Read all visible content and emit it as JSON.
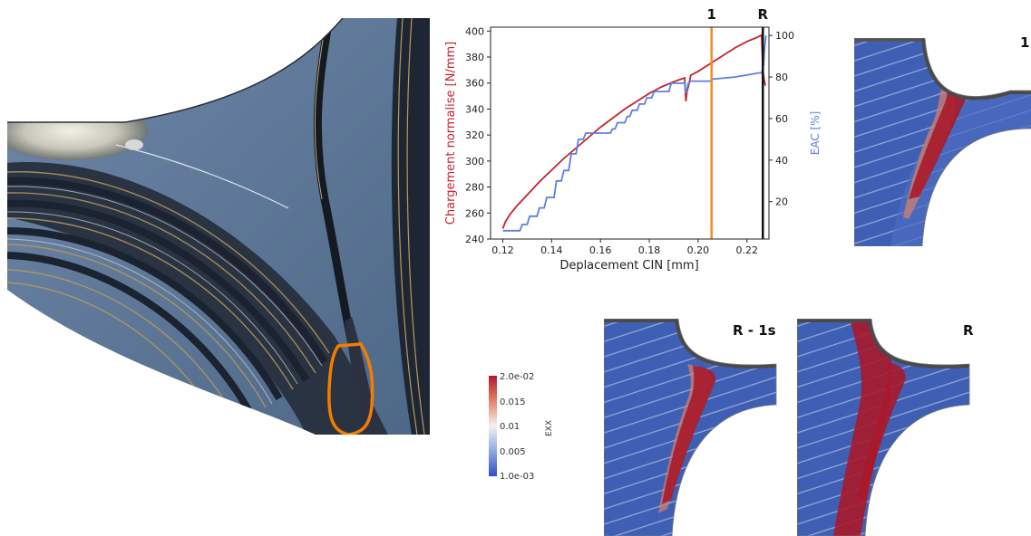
{
  "micrograph": {
    "highlight_color": "#f47c00"
  },
  "chart_data": {
    "type": "line",
    "xlabel": "Deplacement CIN [mm]",
    "ylabel_left": "Chargement normalise [N/mm]",
    "ylabel_right": "EAC [%]",
    "xlim": [
      0.115,
      0.229
    ],
    "ylim_left": [
      240,
      403
    ],
    "ylim_right": [
      2,
      104
    ],
    "x_ticks": [
      0.12,
      0.14,
      0.16,
      0.18,
      0.2,
      0.22
    ],
    "x_tick_labels": [
      "0.12",
      "0.14",
      "0.16",
      "0.18",
      "0.20",
      "0.22"
    ],
    "y_left_ticks": [
      240,
      260,
      280,
      300,
      320,
      340,
      360,
      380,
      400
    ],
    "y_left_tick_labels": [
      "240",
      "260",
      "280",
      "300",
      "320",
      "340",
      "360",
      "380",
      "400"
    ],
    "y_right_ticks": [
      20,
      40,
      60,
      80,
      100
    ],
    "y_right_tick_labels": [
      "20",
      "40",
      "60",
      "80",
      "100"
    ],
    "grid": false,
    "series": [
      {
        "axis": "left",
        "color": "#c0262f",
        "points": [
          [
            0.12,
            248
          ],
          [
            0.121,
            253
          ],
          [
            0.123,
            259
          ],
          [
            0.126,
            266
          ],
          [
            0.13,
            274
          ],
          [
            0.135,
            284
          ],
          [
            0.14,
            293
          ],
          [
            0.145,
            302
          ],
          [
            0.15,
            310
          ],
          [
            0.155,
            318
          ],
          [
            0.16,
            326
          ],
          [
            0.165,
            333
          ],
          [
            0.17,
            340
          ],
          [
            0.175,
            346
          ],
          [
            0.18,
            352
          ],
          [
            0.185,
            357
          ],
          [
            0.19,
            361
          ],
          [
            0.193,
            363
          ],
          [
            0.1945,
            364
          ],
          [
            0.1948,
            352
          ],
          [
            0.195,
            346
          ],
          [
            0.1955,
            354
          ],
          [
            0.196,
            357
          ],
          [
            0.197,
            366
          ],
          [
            0.2,
            369
          ],
          [
            0.205,
            375
          ],
          [
            0.21,
            381
          ],
          [
            0.215,
            387
          ],
          [
            0.22,
            392
          ],
          [
            0.224,
            395
          ],
          [
            0.226,
            397
          ],
          [
            0.2265,
            370
          ],
          [
            0.227,
            363
          ],
          [
            0.2275,
            358
          ]
        ]
      },
      {
        "axis": "right",
        "color": "#5b7fe0",
        "points": [
          [
            0.12,
            6
          ],
          [
            0.127,
            6
          ],
          [
            0.128,
            9
          ],
          [
            0.13,
            9
          ],
          [
            0.131,
            13
          ],
          [
            0.134,
            13
          ],
          [
            0.135,
            17
          ],
          [
            0.137,
            17
          ],
          [
            0.138,
            22
          ],
          [
            0.141,
            22
          ],
          [
            0.142,
            30
          ],
          [
            0.144,
            30
          ],
          [
            0.145,
            35
          ],
          [
            0.147,
            35
          ],
          [
            0.148,
            43
          ],
          [
            0.15,
            43
          ],
          [
            0.151,
            50
          ],
          [
            0.153,
            50
          ],
          [
            0.154,
            53
          ],
          [
            0.164,
            53
          ],
          [
            0.165,
            55
          ],
          [
            0.166,
            55
          ],
          [
            0.167,
            58
          ],
          [
            0.17,
            58
          ],
          [
            0.171,
            61
          ],
          [
            0.172,
            61
          ],
          [
            0.173,
            64
          ],
          [
            0.175,
            64
          ],
          [
            0.176,
            67
          ],
          [
            0.178,
            67
          ],
          [
            0.179,
            70
          ],
          [
            0.181,
            70
          ],
          [
            0.182,
            73
          ],
          [
            0.188,
            73
          ],
          [
            0.189,
            77
          ],
          [
            0.1945,
            77
          ],
          [
            0.195,
            72
          ],
          [
            0.196,
            77
          ],
          [
            0.197,
            78
          ],
          [
            0.205,
            78
          ],
          [
            0.206,
            79
          ],
          [
            0.215,
            80
          ],
          [
            0.225,
            82
          ],
          [
            0.226,
            82
          ],
          [
            0.2268,
            86
          ],
          [
            0.2273,
            95
          ],
          [
            0.2278,
            100
          ]
        ]
      }
    ],
    "markers": [
      {
        "x": 0.2055,
        "label": "1",
        "color": "#f28c1e"
      },
      {
        "x": 0.2265,
        "label": "R",
        "color": "#111111"
      }
    ]
  },
  "panels": {
    "p1_label": "1",
    "p2_label": "R - 1s",
    "p3_label": "R"
  },
  "colorbar": {
    "title": "EXX",
    "ticks": [
      "2.0e-02",
      "0.015",
      "0.01",
      "0.005",
      "1.0e-03"
    ]
  }
}
